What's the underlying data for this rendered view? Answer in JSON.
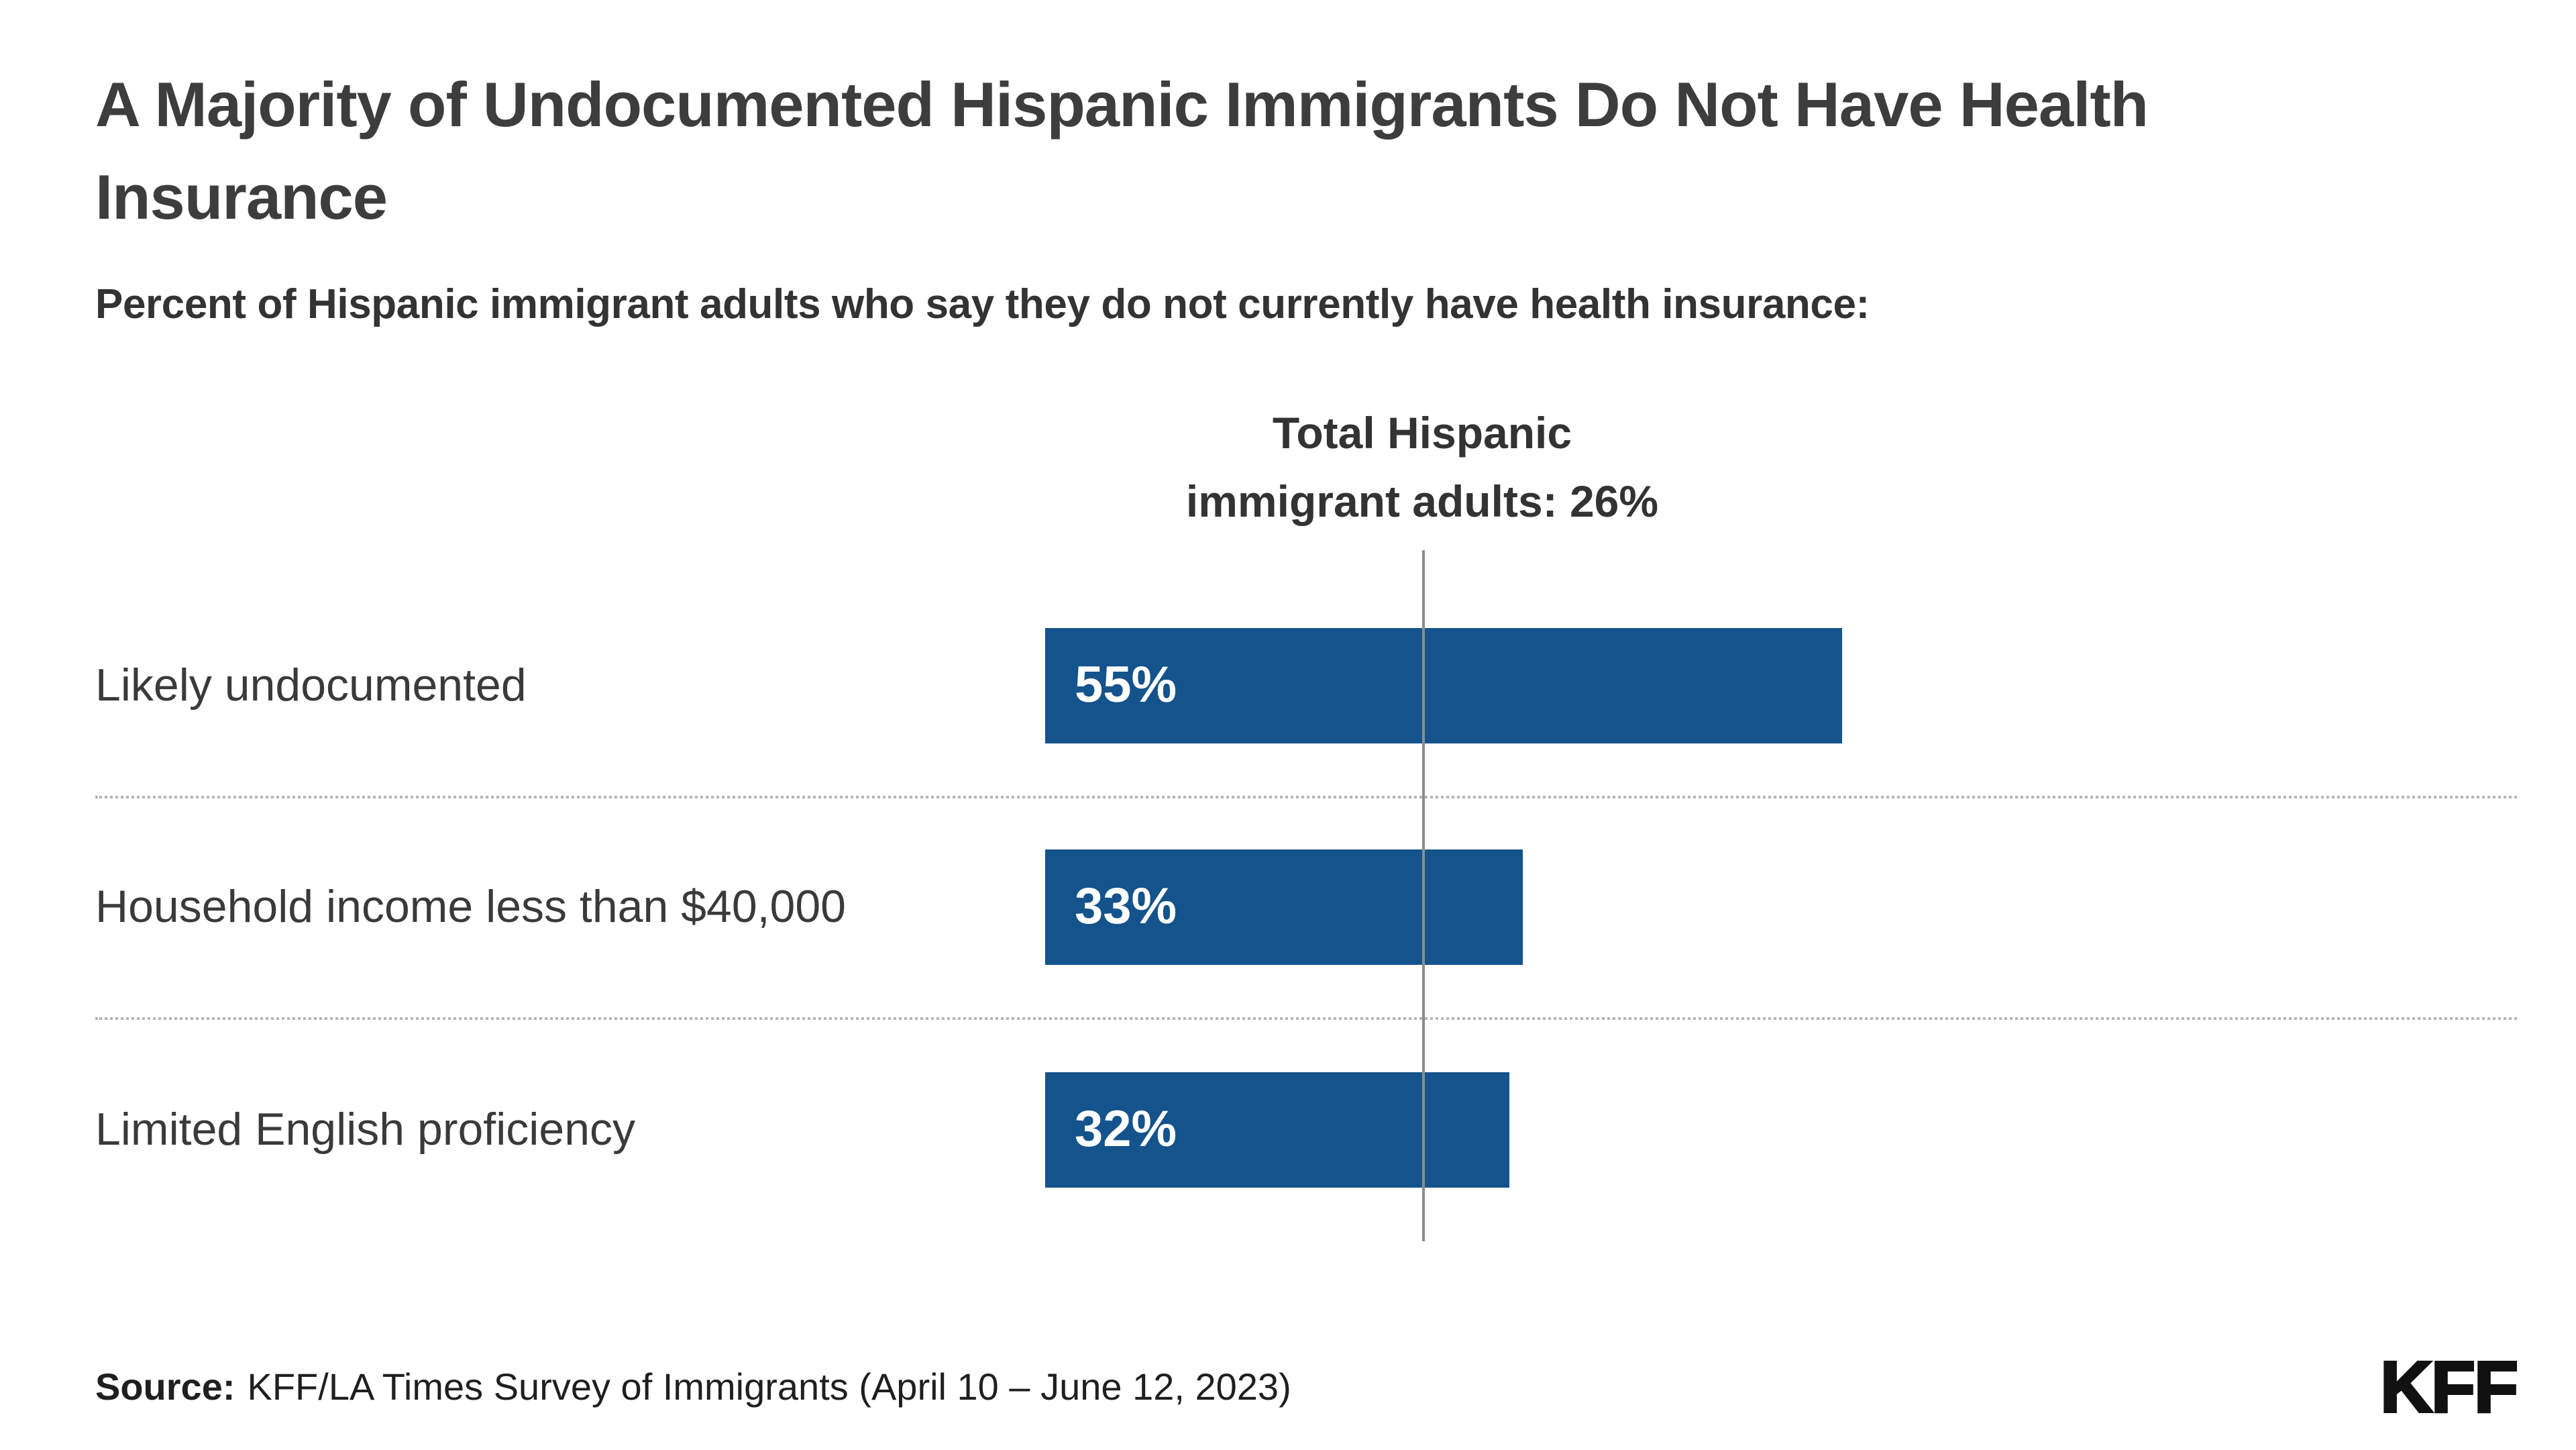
{
  "page": {
    "title": "A Majority of Undocumented Hispanic Immigrants Do Not Have Health Insurance",
    "subtitle": "Percent of Hispanic immigrant adults who say they do not currently have health insurance:"
  },
  "chart_data": {
    "type": "bar",
    "orientation": "horizontal",
    "title": "A Majority of Undocumented Hispanic Immigrants Do Not Have Health Insurance",
    "subtitle": "Percent of Hispanic immigrant adults who say they do not currently have health insurance:",
    "categories": [
      "Likely undocumented",
      "Household income less than $40,000",
      "Limited English proficiency"
    ],
    "values": [
      55,
      33,
      32
    ],
    "value_labels": [
      "55%",
      "33%",
      "32%"
    ],
    "unit": "%",
    "xlim": [
      0,
      60
    ],
    "grid": false,
    "legend": "none",
    "reference_line": {
      "value": 26,
      "label_line1": "Total Hispanic",
      "label_line2": "immigrant adults: 26%"
    },
    "bar_color": "#14538c"
  },
  "footer": {
    "source_label": "Source:",
    "source_text": "KFF/LA Times Survey of Immigrants (April 10 – June 12, 2023)",
    "logo": "KFF"
  },
  "colors": {
    "bar": "#14538c",
    "title_text": "#3d3d3d",
    "body_text": "#333333",
    "value_text": "#ffffff",
    "reference_line": "#8c8c8c",
    "separator": "#b5b5b5"
  }
}
